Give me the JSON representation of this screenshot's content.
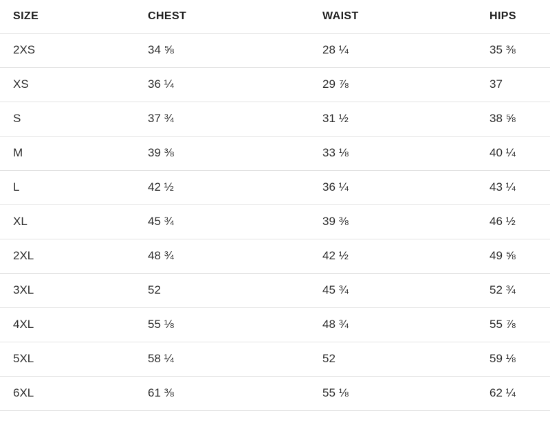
{
  "table": {
    "columns": [
      {
        "key": "size",
        "label": "SIZE"
      },
      {
        "key": "chest",
        "label": "CHEST"
      },
      {
        "key": "waist",
        "label": "WAIST"
      },
      {
        "key": "hips",
        "label": "HIPS"
      }
    ],
    "rows": [
      {
        "size": "2XS",
        "chest": "34 ⅝",
        "waist": "28 ¼",
        "hips": "35 ⅜"
      },
      {
        "size": "XS",
        "chest": "36 ¼",
        "waist": "29 ⅞",
        "hips": "37"
      },
      {
        "size": "S",
        "chest": "37 ¾",
        "waist": "31 ½",
        "hips": "38 ⅝"
      },
      {
        "size": "M",
        "chest": "39 ⅜",
        "waist": "33 ⅛",
        "hips": "40 ¼"
      },
      {
        "size": "L",
        "chest": "42 ½",
        "waist": "36 ¼",
        "hips": "43 ¼"
      },
      {
        "size": "XL",
        "chest": "45 ¾",
        "waist": "39 ⅜",
        "hips": "46 ½"
      },
      {
        "size": "2XL",
        "chest": "48 ¾",
        "waist": "42 ½",
        "hips": "49 ⅝"
      },
      {
        "size": "3XL",
        "chest": "52",
        "waist": "45 ¾",
        "hips": "52 ¾"
      },
      {
        "size": "4XL",
        "chest": "55 ⅛",
        "waist": "48 ¾",
        "hips": "55 ⅞"
      },
      {
        "size": "5XL",
        "chest": "58 ¼",
        "waist": "52",
        "hips": "59 ⅛"
      },
      {
        "size": "6XL",
        "chest": "61 ⅜",
        "waist": "55 ⅛",
        "hips": "62 ¼"
      }
    ],
    "colors": {
      "header_text": "#1f1f1f",
      "body_text": "#2e2e2e",
      "row_border": "#e2e2e2",
      "background": "#ffffff"
    }
  }
}
